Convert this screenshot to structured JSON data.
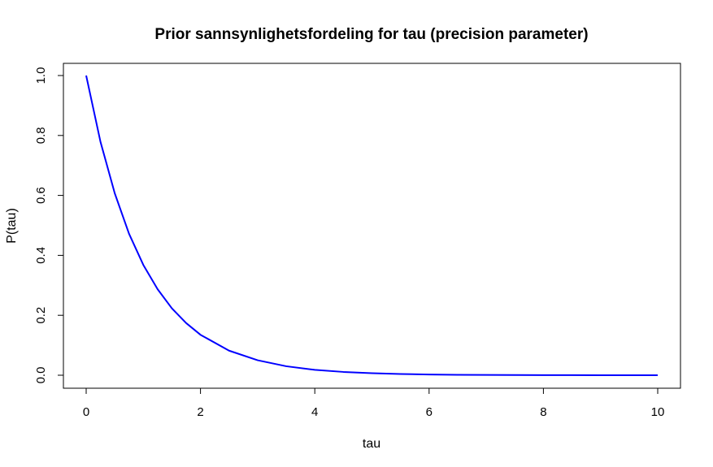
{
  "chart_data": {
    "type": "line",
    "title": "Prior sannsynlighetsfordeling for tau (precision parameter)",
    "xlabel": "tau",
    "ylabel": "P(tau)",
    "xlim": [
      0,
      10
    ],
    "ylim": [
      0,
      1
    ],
    "x_ticks": [
      0,
      2,
      4,
      6,
      8,
      10
    ],
    "x_tick_labels": [
      "0",
      "2",
      "4",
      "6",
      "8",
      "10"
    ],
    "y_ticks": [
      0,
      0.2,
      0.4,
      0.6,
      0.8,
      1.0
    ],
    "y_tick_labels": [
      "0.0",
      "0.2",
      "0.4",
      "0.6",
      "0.8",
      "1.0"
    ],
    "series": [
      {
        "name": "P(tau)",
        "color": "#0000ff",
        "x": [
          0,
          0.25,
          0.5,
          0.75,
          1,
          1.25,
          1.5,
          1.75,
          2,
          2.5,
          3,
          3.5,
          4,
          4.5,
          5,
          5.5,
          6,
          6.5,
          7,
          7.5,
          8,
          8.5,
          9,
          9.5,
          10
        ],
        "y": [
          1.0,
          0.779,
          0.607,
          0.472,
          0.368,
          0.287,
          0.223,
          0.174,
          0.135,
          0.082,
          0.05,
          0.03,
          0.018,
          0.011,
          0.0067,
          0.0041,
          0.0025,
          0.0015,
          0.0009,
          0.00055,
          0.00034,
          0.0002,
          0.00012,
          7e-05,
          4.5e-05
        ]
      }
    ]
  }
}
